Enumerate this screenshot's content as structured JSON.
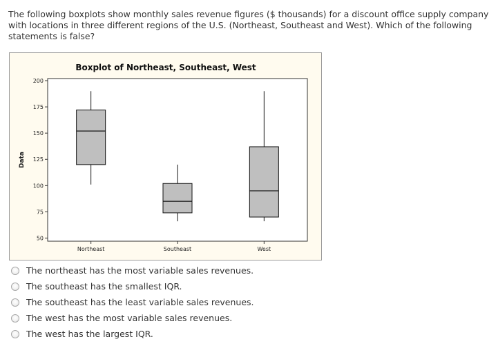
{
  "question": {
    "text": "The following boxplots show monthly sales revenue figures ($ thousands) for a discount office supply company with locations in three different regions of the U.S. (Northeast, Southeast and West). Which of the following statements is false?"
  },
  "chart_data": {
    "type": "boxplot",
    "title": "Boxplot of Northeast, Southeast, West",
    "ylabel": "Data",
    "xlabel": "",
    "ylim": [
      47,
      202
    ],
    "yticks": [
      50,
      75,
      100,
      125,
      150,
      175,
      200
    ],
    "categories": [
      "Northeast",
      "Southeast",
      "West"
    ],
    "boxes": [
      {
        "category": "Northeast",
        "min": 101,
        "q1": 120,
        "median": 152,
        "q3": 172,
        "max": 190
      },
      {
        "category": "Southeast",
        "min": 66,
        "q1": 74,
        "median": 85,
        "q3": 102,
        "max": 120
      },
      {
        "category": "West",
        "min": 66,
        "q1": 70,
        "median": 95,
        "q3": 137,
        "max": 190
      }
    ],
    "box_color": "#bfbfbf",
    "grid": false,
    "legend": "none"
  },
  "options": [
    {
      "label": "The northeast has the most variable sales revenues."
    },
    {
      "label": "The southeast has the smallest IQR."
    },
    {
      "label": "The southeast has the least variable sales revenues."
    },
    {
      "label": "The west has the most variable sales revenues."
    },
    {
      "label": "The west has the largest IQR."
    }
  ]
}
